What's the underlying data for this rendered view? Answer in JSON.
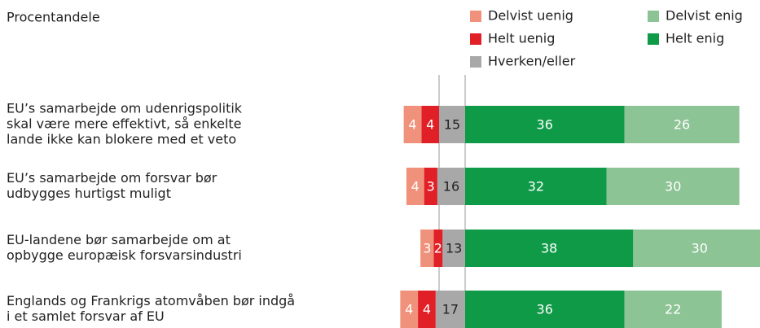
{
  "chart_data": {
    "type": "diverging-bar",
    "subtitle": "Procentandele",
    "categories": [
      [
        "EU’s samarbejde om udenrigspolitik",
        "skal være mere effektivt, så enkelte",
        "lande ikke kan blokere med et veto"
      ],
      [
        "EU’s samarbejde om forsvar bør",
        "udbygges hurtigst muligt"
      ],
      [
        "EU-landene bør samarbejde om at",
        "opbygge europæisk forsvarsindustri"
      ],
      [
        "Englands og Frankrigs atomvåben bør indgå",
        "i et samlet forsvar af EU"
      ]
    ],
    "series": [
      {
        "name": "Delvist uenig",
        "color": "#f0917b",
        "values": [
          4,
          4,
          3,
          4
        ]
      },
      {
        "name": "Helt uenig",
        "color": "#e01f26",
        "values": [
          4,
          3,
          2,
          4
        ]
      },
      {
        "name": "Hverken/eller",
        "color": "#a8a8a8",
        "values": [
          15,
          16,
          13,
          17
        ]
      },
      {
        "name": "Helt enig",
        "color": "#0f9a48",
        "values": [
          36,
          32,
          38,
          36
        ]
      },
      {
        "name": "Delvist enig",
        "color": "#8dc495",
        "values": [
          26,
          30,
          30,
          22
        ]
      }
    ]
  }
}
